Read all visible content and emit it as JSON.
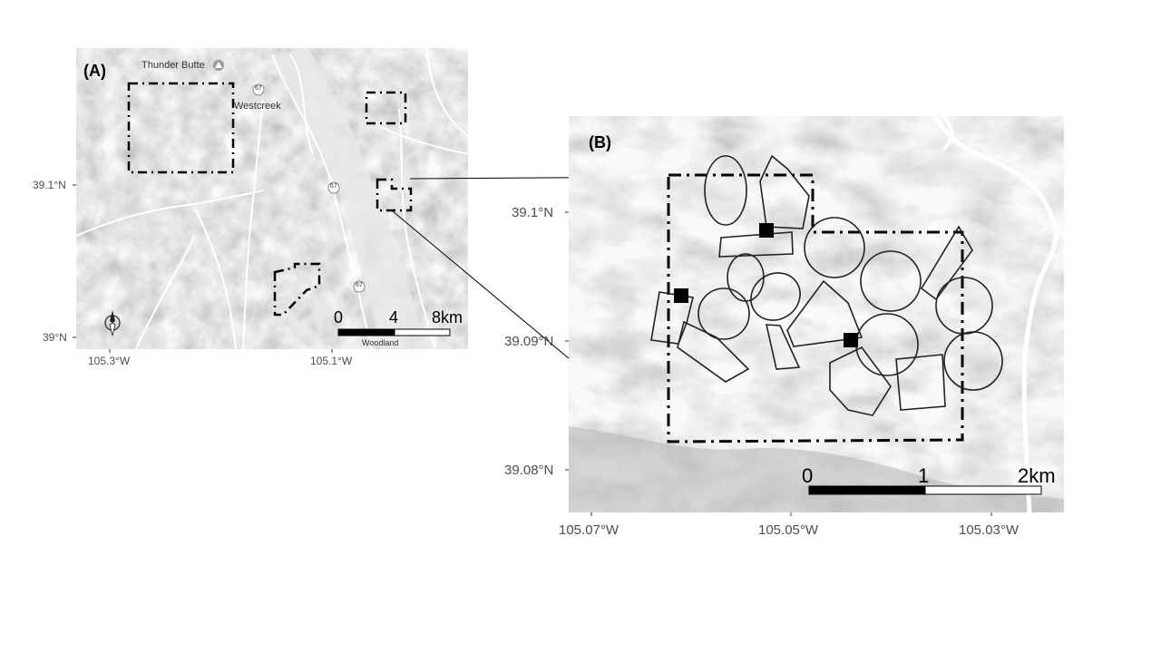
{
  "panel_a": {
    "tag": "(A)",
    "places": [
      "Thunder Butte",
      "Westcreek",
      "Woodland"
    ],
    "road_shields": [
      "67",
      "67",
      "67"
    ],
    "y_ticks": [
      "39.1°N",
      "39°N"
    ],
    "x_ticks": [
      "105.3°W",
      "105.1°W"
    ],
    "scale": {
      "labels": [
        "0",
        "4",
        "8km"
      ]
    }
  },
  "panel_b": {
    "tag": "(B)",
    "y_ticks": [
      "39.1°N",
      "39.09°N",
      "39.08°N"
    ],
    "x_ticks": [
      "105.07°W",
      "105.05°W",
      "105.03°W"
    ],
    "scale": {
      "labels": [
        "0",
        "1",
        "2km"
      ]
    }
  },
  "colors": {
    "terrain_light": "#e2e2e2",
    "terrain_dark": "#8c8c8c",
    "roads": "#ffffff",
    "outline": "#000000"
  }
}
